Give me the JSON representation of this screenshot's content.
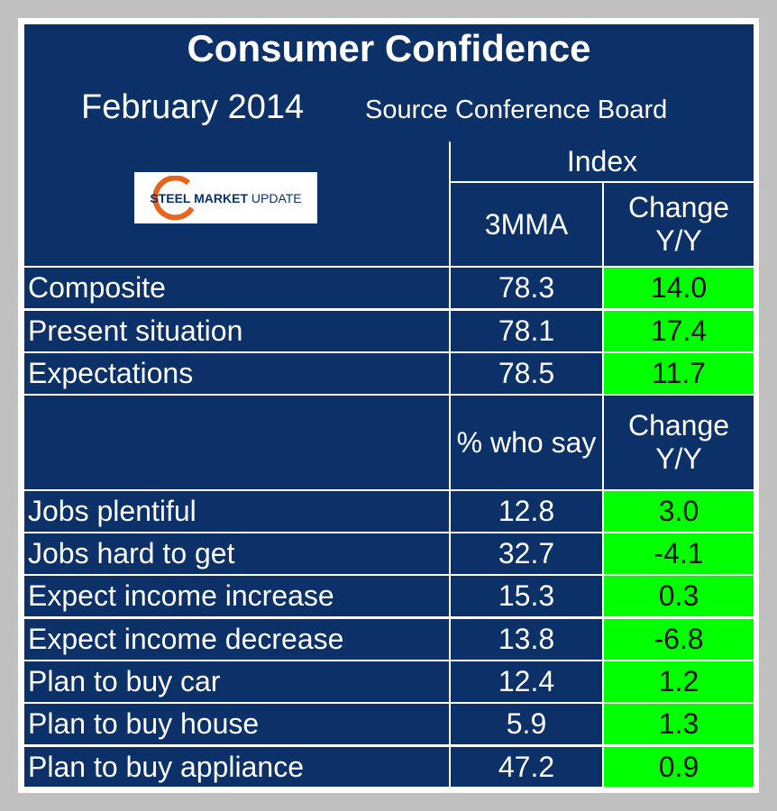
{
  "header": {
    "title": "Consumer Confidence",
    "subtitle": "February 2014",
    "source": "Source Conference Board"
  },
  "logo": {
    "brand": "STEEL MARKET",
    "suffix": "UPDATE"
  },
  "table": {
    "group_header": "Index",
    "columns": [
      "3MMA",
      "Change Y/Y"
    ],
    "rows": [
      [
        "Composite",
        "78.3",
        "14.0"
      ],
      [
        "Present situation",
        "78.1",
        "17.4"
      ],
      [
        "Expectations",
        "78.5",
        "11.7"
      ]
    ],
    "columns2": [
      "% who say",
      "Change Y/Y"
    ],
    "rows2": [
      [
        "Jobs plentiful",
        "12.8",
        "3.0"
      ],
      [
        "Jobs hard to get",
        "32.7",
        "-4.1"
      ],
      [
        "Expect income increase",
        "15.3",
        "0.3"
      ],
      [
        "Expect income decrease",
        "13.8",
        "-6.8"
      ],
      [
        "Plan to buy car",
        "12.4",
        "1.2"
      ],
      [
        "Plan to buy house",
        "5.9",
        "1.3"
      ],
      [
        "Plan to buy appliance",
        "47.2",
        "0.9"
      ]
    ]
  }
}
